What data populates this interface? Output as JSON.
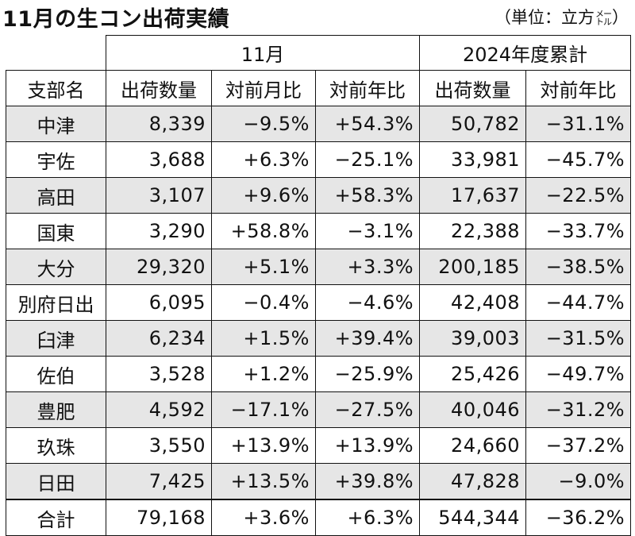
{
  "title": "11月の生コン出荷実績",
  "unit": {
    "prefix": "（単位：立方",
    "small_top": "メー",
    "small_bottom": "トル",
    "suffix": "）"
  },
  "group_headers": {
    "month": "11月",
    "cumulative": "2024年度累計"
  },
  "columns": [
    "支部名",
    "出荷数量",
    "対前月比",
    "対前年比",
    "出荷数量",
    "対前年比"
  ],
  "rows": [
    {
      "name": "中津",
      "vol": "8,339",
      "mom": "−9.5%",
      "yoy": "+54.3%",
      "cum": "50,782",
      "cum_yoy": "−31.1%"
    },
    {
      "name": "宇佐",
      "vol": "3,688",
      "mom": "+6.3%",
      "yoy": "−25.1%",
      "cum": "33,981",
      "cum_yoy": "−45.7%"
    },
    {
      "name": "高田",
      "vol": "3,107",
      "mom": "+9.6%",
      "yoy": "+58.3%",
      "cum": "17,637",
      "cum_yoy": "−22.5%"
    },
    {
      "name": "国東",
      "vol": "3,290",
      "mom": "+58.8%",
      "yoy": "−3.1%",
      "cum": "22,388",
      "cum_yoy": "−33.7%"
    },
    {
      "name": "大分",
      "vol": "29,320",
      "mom": "+5.1%",
      "yoy": "+3.3%",
      "cum": "200,185",
      "cum_yoy": "−38.5%"
    },
    {
      "name": "別府日出",
      "vol": "6,095",
      "mom": "−0.4%",
      "yoy": "−4.6%",
      "cum": "42,408",
      "cum_yoy": "−44.7%"
    },
    {
      "name": "臼津",
      "vol": "6,234",
      "mom": "+1.5%",
      "yoy": "+39.4%",
      "cum": "39,003",
      "cum_yoy": "−31.5%"
    },
    {
      "name": "佐伯",
      "vol": "3,528",
      "mom": "+1.2%",
      "yoy": "−25.9%",
      "cum": "25,426",
      "cum_yoy": "−49.7%"
    },
    {
      "name": "豊肥",
      "vol": "4,592",
      "mom": "−17.1%",
      "yoy": "−27.5%",
      "cum": "40,046",
      "cum_yoy": "−31.2%"
    },
    {
      "name": "玖珠",
      "vol": "3,550",
      "mom": "+13.9%",
      "yoy": "+13.9%",
      "cum": "24,660",
      "cum_yoy": "−37.2%"
    },
    {
      "name": "日田",
      "vol": "7,425",
      "mom": "+13.5%",
      "yoy": "+39.8%",
      "cum": "47,828",
      "cum_yoy": "−9.0%"
    }
  ],
  "total": {
    "name": "合計",
    "vol": "79,168",
    "mom": "+3.6%",
    "yoy": "+6.3%",
    "cum": "544,344",
    "cum_yoy": "−36.2%"
  }
}
